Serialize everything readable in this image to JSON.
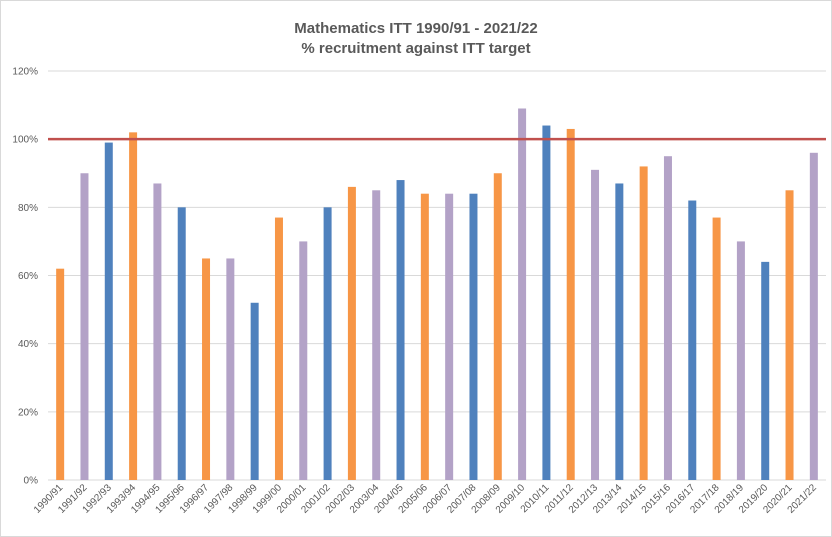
{
  "chart_data": {
    "type": "bar",
    "title": "Mathematics ITT 1990/91 - 2021/22",
    "subtitle": "% recruitment against ITT target",
    "categories": [
      "1990/91",
      "1991/92",
      "1992/93",
      "1993/94",
      "1994/95",
      "1995/96",
      "1996/97",
      "1997/98",
      "1998/99",
      "1999/00",
      "2000/01",
      "2001/02",
      "2002/03",
      "2003/04",
      "2004/05",
      "2005/06",
      "2006/07",
      "2007/08",
      "2008/09",
      "2009/10",
      "2010/11",
      "2011/12",
      "2012/13",
      "2013/14",
      "2014/15",
      "2015/16",
      "2016/17",
      "2017/18",
      "2018/19",
      "2019/20",
      "2020/21",
      "2021/22"
    ],
    "values": [
      62,
      90,
      99,
      102,
      87,
      80,
      65,
      65,
      52,
      77,
      70,
      80,
      86,
      85,
      88,
      84,
      84,
      84,
      90,
      109,
      104,
      103,
      91,
      87,
      92,
      95,
      82,
      77,
      70,
      64,
      85,
      96
    ],
    "bar_colors": [
      "#f79646",
      "#b3a2c7",
      "#4f81bd",
      "#f79646",
      "#b3a2c7",
      "#4f81bd",
      "#f79646",
      "#b3a2c7",
      "#4f81bd",
      "#f79646",
      "#b3a2c7",
      "#4f81bd",
      "#f79646",
      "#b3a2c7",
      "#4f81bd",
      "#f79646",
      "#b3a2c7",
      "#4f81bd",
      "#f79646",
      "#b3a2c7",
      "#4f81bd",
      "#f79646",
      "#b3a2c7",
      "#4f81bd",
      "#f79646",
      "#b3a2c7",
      "#4f81bd",
      "#f79646",
      "#b3a2c7",
      "#4f81bd",
      "#f79646",
      "#b3a2c7"
    ],
    "ylim": [
      0,
      120
    ],
    "yticks": [
      "0%",
      "20%",
      "40%",
      "60%",
      "80%",
      "100%",
      "120%"
    ],
    "ytick_values": [
      0,
      20,
      40,
      60,
      80,
      100,
      120
    ],
    "target_line": {
      "value": 100,
      "color": "#c0504d"
    },
    "grid": true,
    "legend": "none"
  }
}
